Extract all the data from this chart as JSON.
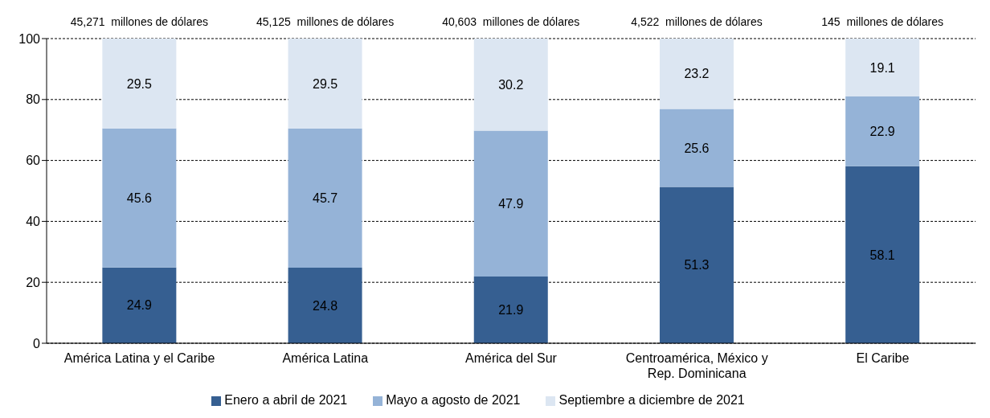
{
  "chart_data": {
    "type": "bar",
    "stacked": true,
    "categories": [
      "América Latina y el Caribe",
      "América Latina",
      "América del Sur",
      "Centroamérica, México y\nRep. Dominicana",
      "El Caribe"
    ],
    "series": [
      {
        "name": "Enero a abril de 2021",
        "color": "#365f91",
        "values": [
          24.9,
          24.8,
          21.9,
          51.3,
          58.1
        ]
      },
      {
        "name": "Mayo a agosto de 2021",
        "color": "#95b3d7",
        "values": [
          45.6,
          45.7,
          47.9,
          25.6,
          22.9
        ]
      },
      {
        "name": "Septiembre a diciembre de 2021",
        "color": "#dce6f2",
        "values": [
          29.5,
          29.5,
          30.2,
          23.2,
          19.1
        ]
      }
    ],
    "annotations": [
      "45,271  millones de dólares",
      "45,125  millones de dólares",
      "40,603  millones de dólares",
      "4,522  millones de dólares",
      "145  millones de dólares"
    ],
    "ylim": [
      0,
      100
    ],
    "yticks": [
      0,
      20,
      40,
      60,
      80,
      100
    ],
    "grid": "y",
    "legend": "bottom",
    "data_labels": true
  }
}
